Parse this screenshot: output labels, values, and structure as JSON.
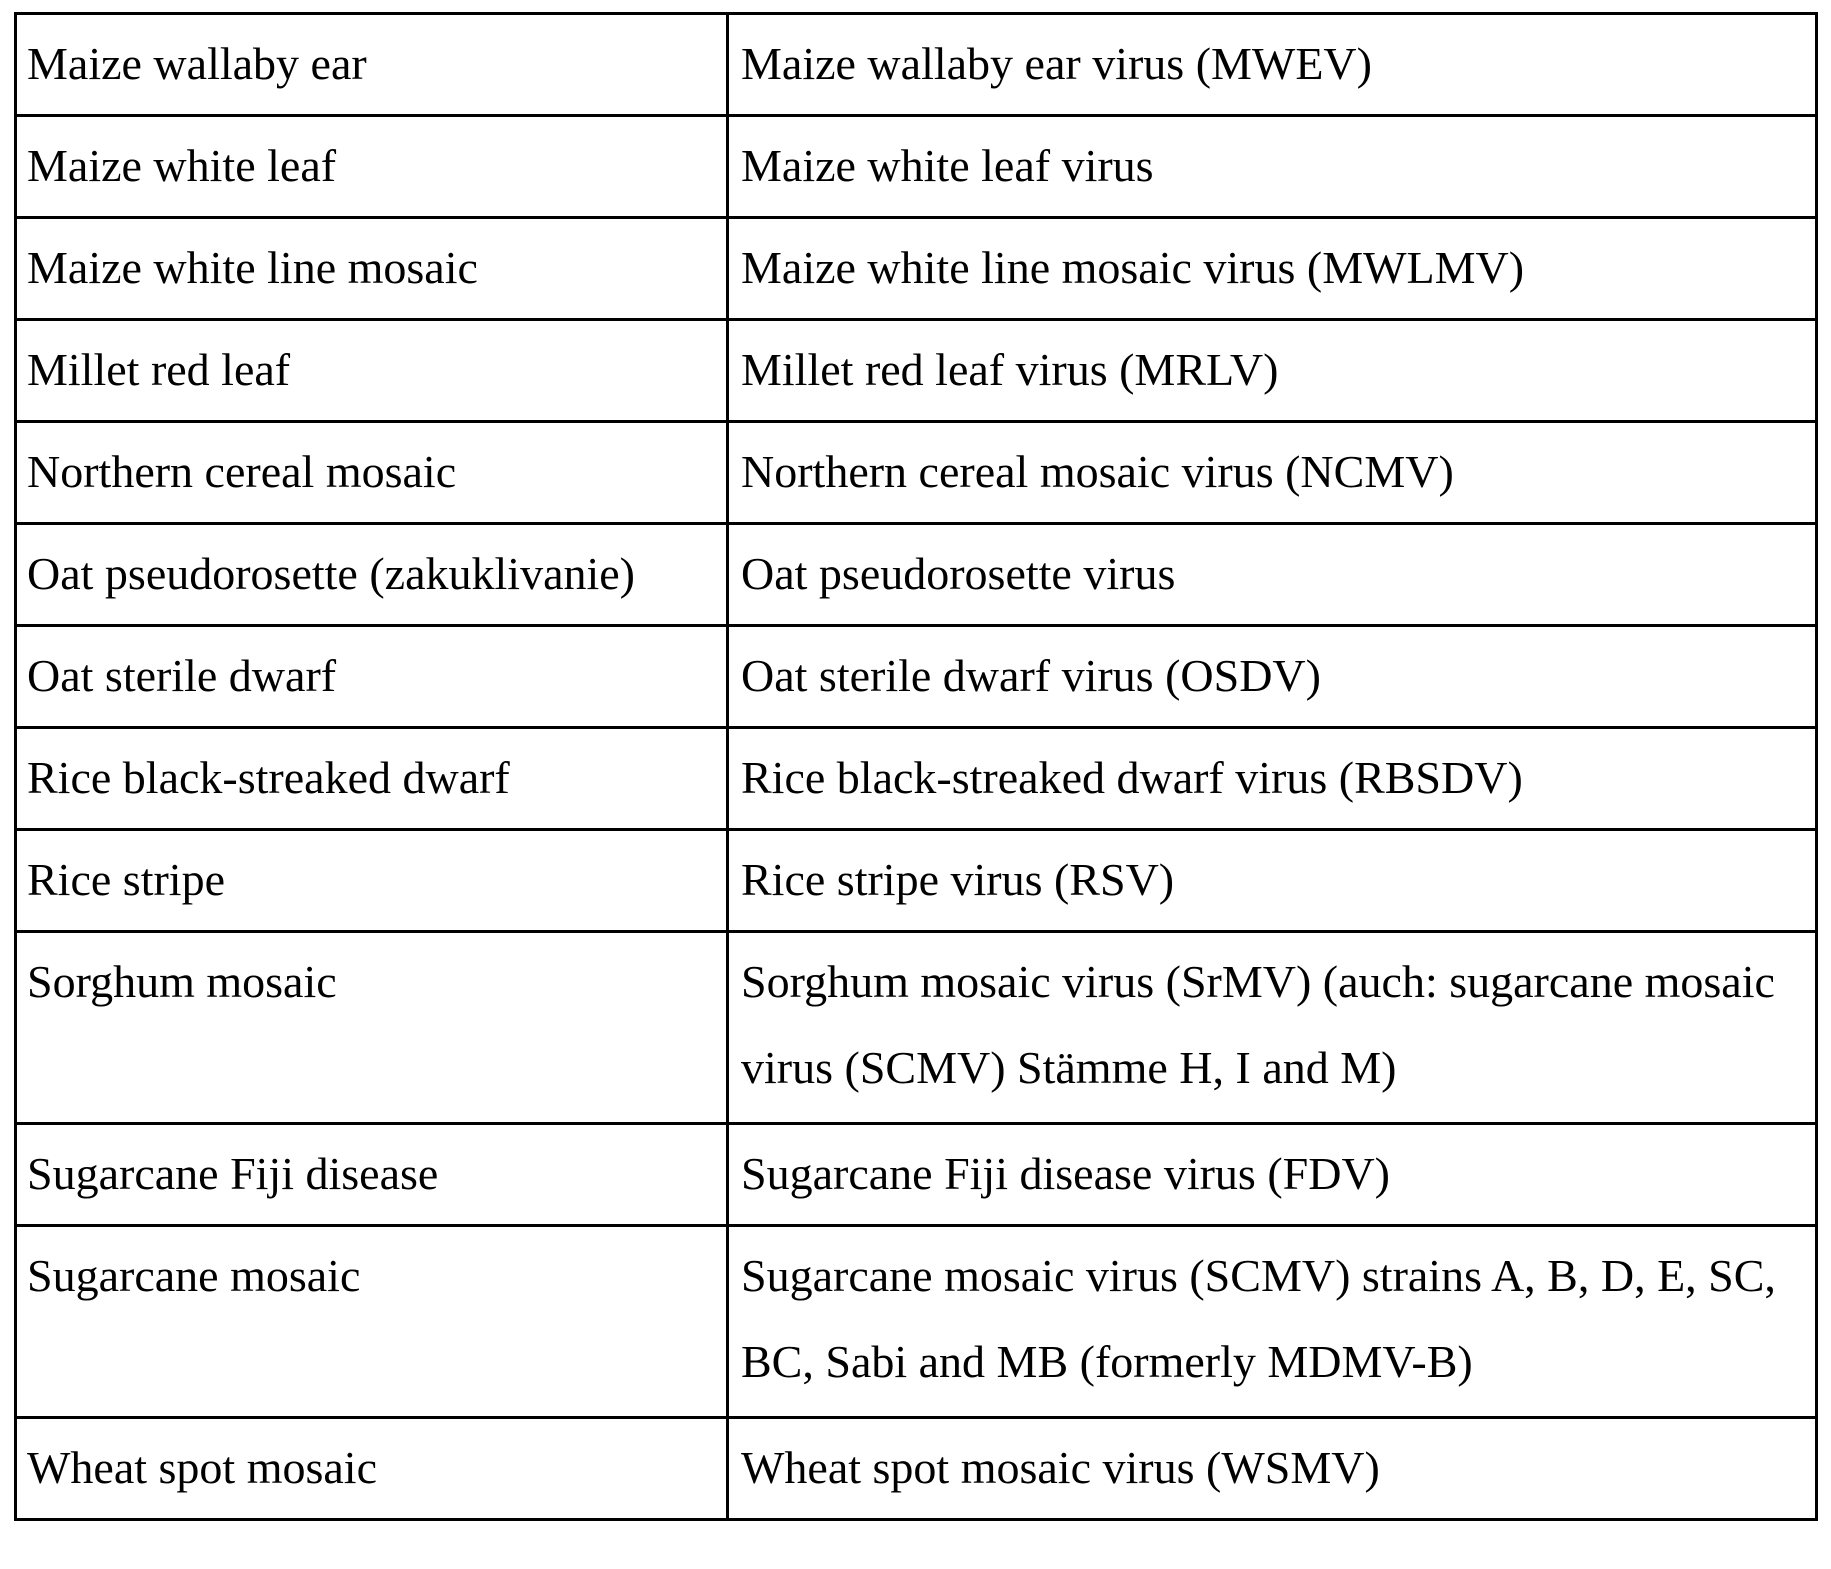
{
  "table": {
    "rows": [
      {
        "disease": "Maize wallaby ear",
        "virus": "Maize wallaby ear virus (MWEV)"
      },
      {
        "disease": "Maize white leaf",
        "virus": "Maize white leaf virus"
      },
      {
        "disease": "Maize white line mosaic",
        "virus": "Maize white line mosaic virus (MWLMV)"
      },
      {
        "disease": "Millet red leaf",
        "virus": "Millet red leaf virus (MRLV)"
      },
      {
        "disease": "Northern cereal mosaic",
        "virus": "Northern cereal mosaic virus (NCMV)"
      },
      {
        "disease": "Oat pseudorosette (zakuklivanie)",
        "virus": "Oat pseudorosette virus"
      },
      {
        "disease": "Oat sterile dwarf",
        "virus": "Oat sterile dwarf virus (OSDV)"
      },
      {
        "disease": "Rice black-streaked dwarf",
        "virus": "Rice black-streaked dwarf virus (RBSDV)"
      },
      {
        "disease": "Rice stripe",
        "virus": "Rice stripe virus (RSV)"
      },
      {
        "disease": "Sorghum mosaic",
        "virus": "Sorghum mosaic virus (SrMV) (auch: sugarcane mosaic virus (SCMV) Stämme H, I and M)"
      },
      {
        "disease": "Sugarcane Fiji disease",
        "virus": "Sugarcane Fiji disease virus (FDV)"
      },
      {
        "disease": "Sugarcane mosaic",
        "virus": "Sugarcane mosaic virus (SCMV) strains A, B, D, E, SC, BC, Sabi and MB (formerly MDMV-B)"
      },
      {
        "disease": "Wheat spot mosaic",
        "virus": "Wheat spot mosaic virus (WSMV)"
      }
    ]
  }
}
